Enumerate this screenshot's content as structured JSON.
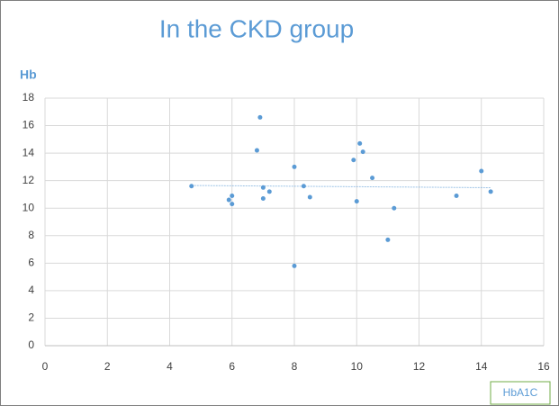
{
  "chart_data": {
    "type": "scatter",
    "title": "In the CKD group",
    "y_label": "Hb",
    "x_label": "HbA1C",
    "series": [
      {
        "name": "Hb",
        "color": "#5b9bd5",
        "x": [
          4.7,
          5.9,
          6.0,
          6.0,
          6.9,
          6.8,
          7.0,
          7.0,
          7.2,
          8.0,
          8.0,
          8.3,
          8.5,
          9.9,
          10.1,
          10.2,
          10.0,
          10.5,
          11.0,
          11.2,
          13.2,
          14.0,
          14.3
        ],
        "values": [
          11.6,
          10.6,
          10.9,
          10.3,
          16.6,
          14.2,
          11.5,
          10.7,
          11.2,
          13.0,
          5.8,
          11.6,
          10.8,
          13.5,
          14.7,
          14.1,
          10.5,
          12.2,
          7.7,
          10.0,
          10.9,
          12.7,
          11.2
        ]
      }
    ],
    "trendline": true,
    "xlim": [
      0,
      16
    ],
    "xticks": [
      0,
      2,
      4,
      6,
      8,
      10,
      12,
      14,
      16
    ],
    "ylim": [
      0,
      18
    ],
    "yticks": [
      0,
      2,
      4,
      6,
      8,
      10,
      12,
      14,
      16,
      18
    ],
    "grid": true
  }
}
